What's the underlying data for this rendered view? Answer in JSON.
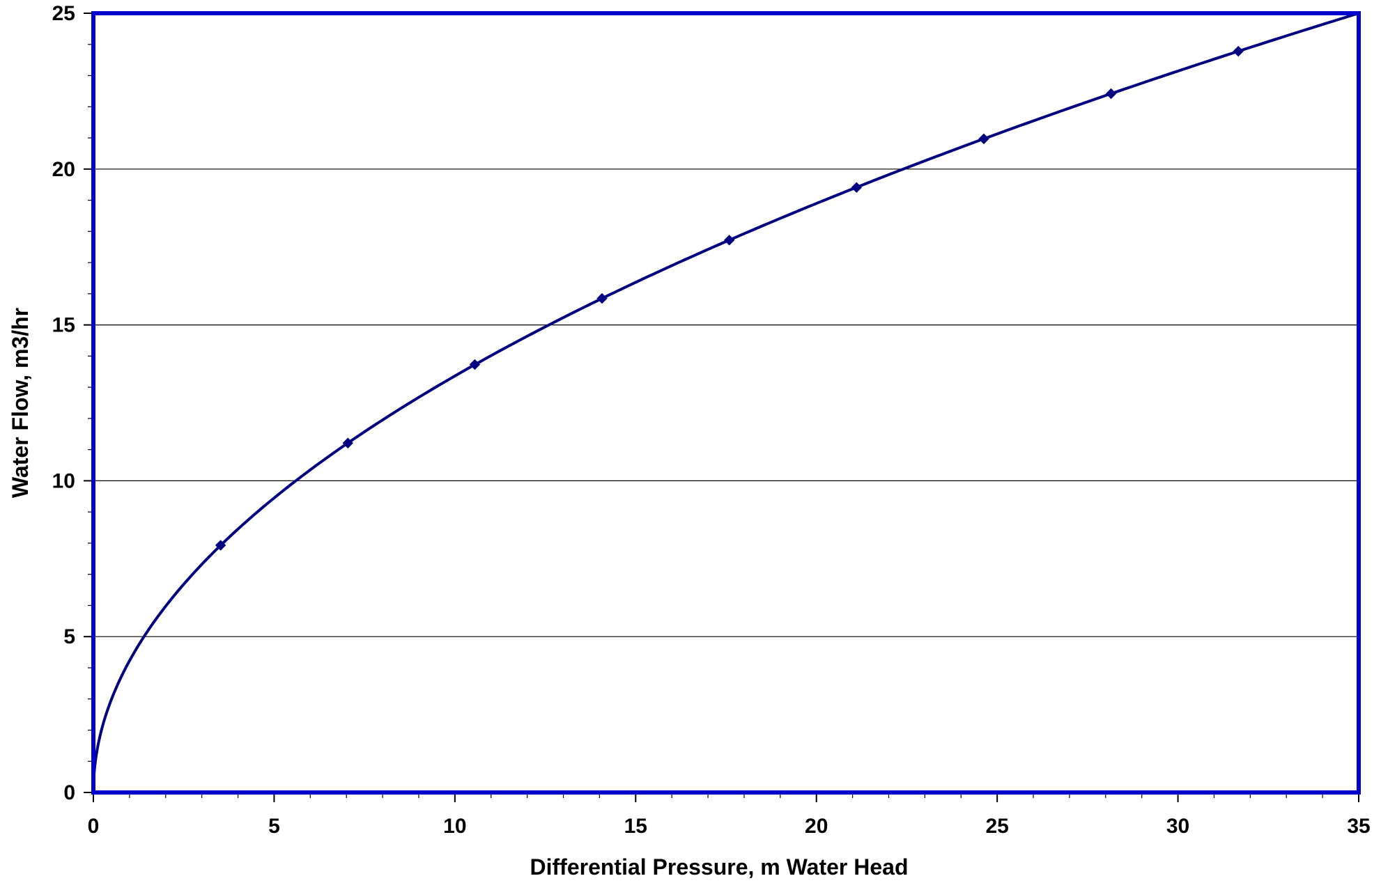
{
  "chart_data": {
    "type": "line",
    "title": "",
    "xlabel": "Differential Pressure, m Water Head",
    "ylabel": "Water Flow, m3/hr",
    "xlim": [
      0,
      35
    ],
    "ylim": [
      0,
      25
    ],
    "x_ticks": [
      "0",
      "5",
      "10",
      "15",
      "20",
      "25",
      "30",
      "35"
    ],
    "y_ticks": [
      "0",
      "5",
      "10",
      "15",
      "20",
      "25"
    ],
    "grid": "horizontal major lines",
    "legend": "none",
    "series": [
      {
        "curve": "Q = 4.225 * sqrt(dP)",
        "x": [
          0,
          3.52,
          7.04,
          10.55,
          14.07,
          17.59,
          21.11,
          24.63,
          28.15,
          31.67,
          35.0
        ],
        "y": [
          0,
          7.93,
          11.21,
          13.73,
          15.85,
          17.72,
          19.41,
          20.97,
          22.42,
          23.78,
          25.0
        ],
        "marker_x": [
          3.52,
          7.04,
          10.55,
          14.07,
          17.59,
          21.11,
          24.63,
          28.15,
          31.67
        ],
        "marker_y": [
          7.93,
          11.21,
          13.73,
          15.85,
          17.72,
          19.41,
          20.97,
          22.42,
          23.78
        ],
        "color": "#000080",
        "marker": "diamond"
      }
    ]
  },
  "colors": {
    "plot_border": "#0000CC",
    "grid": "#000000",
    "series": "#000080"
  }
}
